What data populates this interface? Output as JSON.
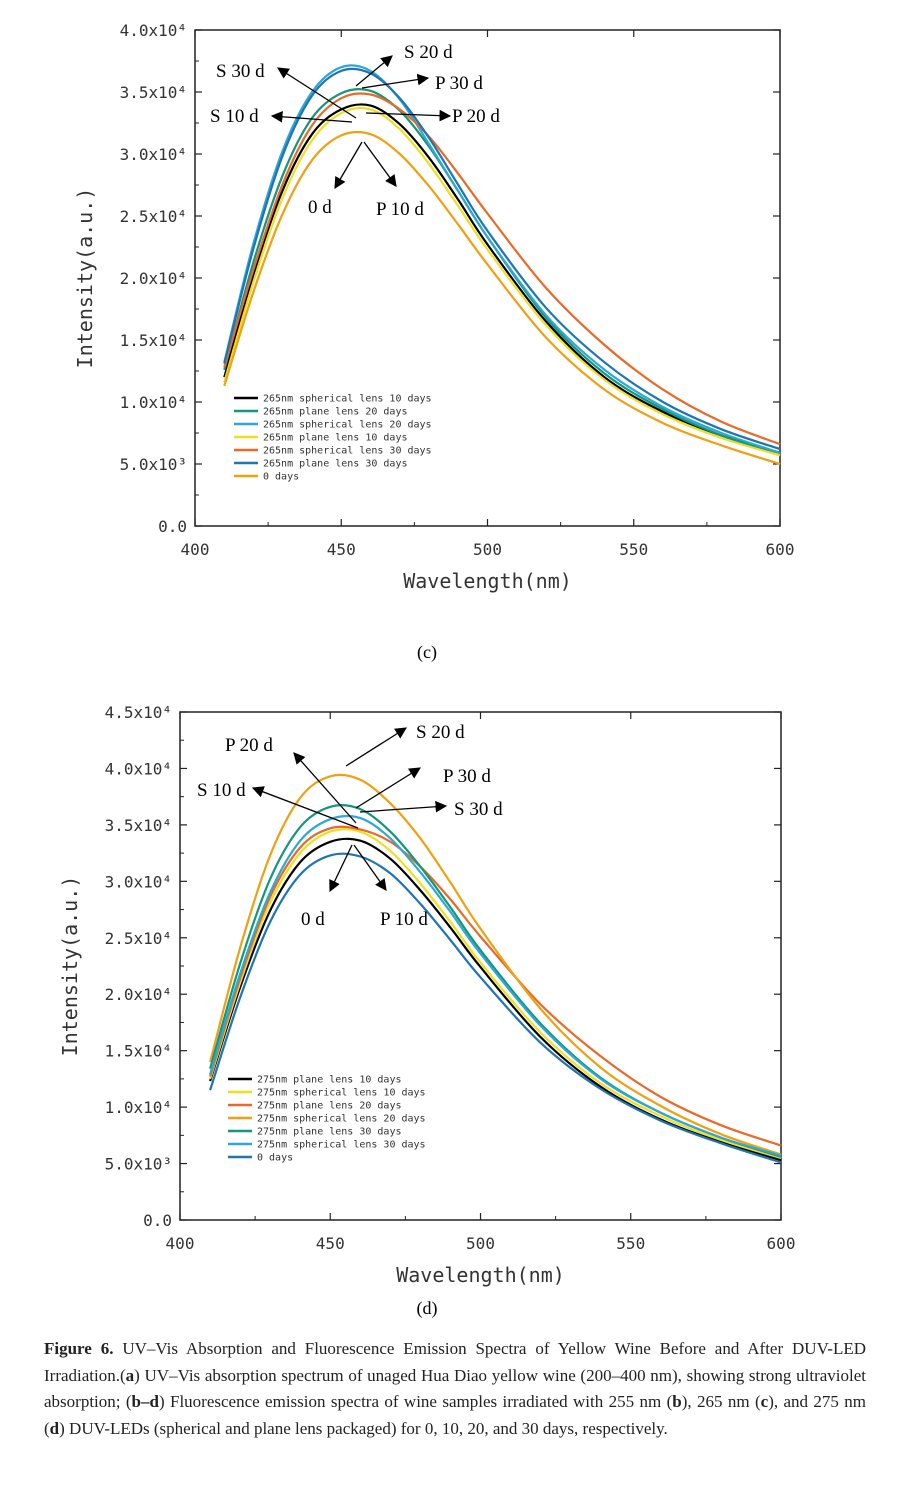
{
  "chart_data": [
    {
      "type": "line",
      "panel": "(c)",
      "xlabel": "Wavelength(nm)",
      "ylabel": "Intensity(a.u.)",
      "xlim": [
        400,
        600
      ],
      "ylim": [
        0,
        40000
      ],
      "xticks": [
        400,
        450,
        500,
        550,
        600
      ],
      "yticks": [
        0,
        5000,
        10000,
        15000,
        20000,
        25000,
        30000,
        35000,
        40000
      ],
      "ytick_labels": [
        "0.0",
        "5.0x10³",
        "1.0x10⁴",
        "1.5x10⁴",
        "2.0x10⁴",
        "2.5x10⁴",
        "3.0x10⁴",
        "3.5x10⁴",
        "4.0x10⁴"
      ],
      "legend_position": "bottom-left",
      "series": [
        {
          "name": "265nm spherical lens 10 days",
          "color": "#000000",
          "points": [
            [
              410,
              12000
            ],
            [
              420,
              20300
            ],
            [
              430,
              27100
            ],
            [
              440,
              31600
            ],
            [
              450,
              33600
            ],
            [
              460,
              33900
            ],
            [
              470,
              32400
            ],
            [
              480,
              29700
            ],
            [
              490,
              26300
            ],
            [
              500,
              22700
            ],
            [
              520,
              16500
            ],
            [
              540,
              12000
            ],
            [
              560,
              9200
            ],
            [
              580,
              7300
            ],
            [
              600,
              5900
            ]
          ]
        },
        {
          "name": "265nm plane lens 20 days",
          "color": "#14967a",
          "points": [
            [
              410,
              12600
            ],
            [
              420,
              21300
            ],
            [
              430,
              28300
            ],
            [
              440,
              32900
            ],
            [
              450,
              34900
            ],
            [
              460,
              35100
            ],
            [
              470,
              33500
            ],
            [
              480,
              30600
            ],
            [
              490,
              27000
            ],
            [
              500,
              23300
            ],
            [
              520,
              16800
            ],
            [
              540,
              12300
            ],
            [
              560,
              9400
            ],
            [
              580,
              7300
            ],
            [
              600,
              5800
            ]
          ]
        },
        {
          "name": "265nm spherical lens 20 days",
          "color": "#2ba8d8",
          "points": [
            [
              410,
              13200
            ],
            [
              420,
              22800
            ],
            [
              430,
              30300
            ],
            [
              440,
              35000
            ],
            [
              450,
              37000
            ],
            [
              460,
              36700
            ],
            [
              470,
              34400
            ],
            [
              480,
              30800
            ],
            [
              490,
              27000
            ],
            [
              500,
              23300
            ],
            [
              520,
              17000
            ],
            [
              540,
              12600
            ],
            [
              560,
              9600
            ],
            [
              580,
              7500
            ],
            [
              600,
              5900
            ]
          ]
        },
        {
          "name": "265nm plane lens 10 days",
          "color": "#f0de20",
          "points": [
            [
              410,
              11600
            ],
            [
              420,
              19700
            ],
            [
              430,
              26500
            ],
            [
              440,
              31100
            ],
            [
              450,
              33300
            ],
            [
              460,
              33600
            ],
            [
              470,
              32000
            ],
            [
              480,
              29200
            ],
            [
              490,
              25800
            ],
            [
              500,
              22300
            ],
            [
              520,
              16200
            ],
            [
              540,
              11800
            ],
            [
              560,
              9000
            ],
            [
              580,
              7100
            ],
            [
              600,
              5700
            ]
          ]
        },
        {
          "name": "265nm spherical lens 30 days",
          "color": "#e96a28",
          "points": [
            [
              410,
              12800
            ],
            [
              420,
              20700
            ],
            [
              430,
              27600
            ],
            [
              440,
              32300
            ],
            [
              450,
              34500
            ],
            [
              460,
              34800
            ],
            [
              470,
              33600
            ],
            [
              480,
              31400
            ],
            [
              490,
              28400
            ],
            [
              500,
              25200
            ],
            [
              520,
              19200
            ],
            [
              540,
              14600
            ],
            [
              560,
              11000
            ],
            [
              580,
              8400
            ],
            [
              600,
              6600
            ]
          ]
        },
        {
          "name": "265nm plane lens 30 days",
          "color": "#1f74b4",
          "points": [
            [
              410,
              13100
            ],
            [
              420,
              22400
            ],
            [
              430,
              29900
            ],
            [
              440,
              34700
            ],
            [
              450,
              36700
            ],
            [
              460,
              36500
            ],
            [
              470,
              34500
            ],
            [
              480,
              31300
            ],
            [
              490,
              27500
            ],
            [
              500,
              23800
            ],
            [
              520,
              17600
            ],
            [
              540,
              13200
            ],
            [
              560,
              10000
            ],
            [
              580,
              7800
            ],
            [
              600,
              6200
            ]
          ]
        },
        {
          "name": "0 days",
          "color": "#f0a010",
          "points": [
            [
              410,
              11300
            ],
            [
              420,
              18900
            ],
            [
              430,
              25200
            ],
            [
              440,
              29500
            ],
            [
              450,
              31500
            ],
            [
              460,
              31600
            ],
            [
              470,
              30000
            ],
            [
              480,
              27400
            ],
            [
              490,
              24300
            ],
            [
              500,
              21100
            ],
            [
              520,
              15200
            ],
            [
              540,
              11000
            ],
            [
              560,
              8300
            ],
            [
              580,
              6500
            ],
            [
              600,
              5000
            ]
          ]
        }
      ],
      "annotations": [
        "S 20 d",
        "S 30 d",
        "P 30 d",
        "S 10 d",
        "P 20 d",
        "0 d",
        "P 10 d"
      ],
      "panel_label": "c"
    },
    {
      "type": "line",
      "panel": "(d)",
      "xlabel": "Wavelength(nm)",
      "ylabel": "Intensity(a.u.)",
      "xlim": [
        400,
        600
      ],
      "ylim": [
        0,
        45000
      ],
      "xticks": [
        400,
        450,
        500,
        550,
        600
      ],
      "yticks": [
        0,
        5000,
        10000,
        15000,
        20000,
        25000,
        30000,
        35000,
        40000,
        45000
      ],
      "ytick_labels": [
        "0.0",
        "5.0x10³",
        "1.0x10⁴",
        "1.5x10⁴",
        "2.0x10⁴",
        "2.5x10⁴",
        "3.0x10⁴",
        "3.5x10⁴",
        "4.0x10⁴",
        "4.5x10⁴"
      ],
      "legend_position": "bottom-left",
      "series": [
        {
          "name": "275nm plane lens 10 days",
          "color": "#000000",
          "points": [
            [
              410,
              12300
            ],
            [
              420,
              20600
            ],
            [
              430,
              27400
            ],
            [
              440,
              31700
            ],
            [
              450,
              33500
            ],
            [
              460,
              33600
            ],
            [
              470,
              32000
            ],
            [
              480,
              29200
            ],
            [
              490,
              25900
            ],
            [
              500,
              22400
            ],
            [
              520,
              16200
            ],
            [
              540,
              11800
            ],
            [
              560,
              8900
            ],
            [
              580,
              6900
            ],
            [
              600,
              5300
            ]
          ]
        },
        {
          "name": "275nm spherical lens 10 days",
          "color": "#f0de20",
          "points": [
            [
              410,
              12500
            ],
            [
              420,
              21000
            ],
            [
              430,
              28100
            ],
            [
              440,
              32500
            ],
            [
              450,
              34400
            ],
            [
              460,
              34400
            ],
            [
              470,
              32700
            ],
            [
              480,
              29800
            ],
            [
              490,
              26400
            ],
            [
              500,
              22800
            ],
            [
              520,
              16600
            ],
            [
              540,
              12100
            ],
            [
              560,
              9200
            ],
            [
              580,
              7100
            ],
            [
              600,
              5500
            ]
          ]
        },
        {
          "name": "275nm plane lens 20 days",
          "color": "#e96a28",
          "points": [
            [
              410,
              12700
            ],
            [
              420,
              21400
            ],
            [
              430,
              28600
            ],
            [
              440,
              33000
            ],
            [
              450,
              34700
            ],
            [
              460,
              34600
            ],
            [
              470,
              33500
            ],
            [
              480,
              31300
            ],
            [
              490,
              28400
            ],
            [
              500,
              25100
            ],
            [
              520,
              19100
            ],
            [
              540,
              14500
            ],
            [
              560,
              10900
            ],
            [
              580,
              8400
            ],
            [
              600,
              6600
            ]
          ]
        },
        {
          "name": "275nm spherical lens 20 days",
          "color": "#f0a010",
          "points": [
            [
              410,
              14000
            ],
            [
              420,
              24100
            ],
            [
              430,
              32300
            ],
            [
              440,
              37400
            ],
            [
              450,
              39300
            ],
            [
              460,
              39000
            ],
            [
              470,
              36900
            ],
            [
              480,
              33800
            ],
            [
              490,
              29900
            ],
            [
              500,
              25800
            ],
            [
              520,
              18700
            ],
            [
              540,
              13500
            ],
            [
              560,
              10100
            ],
            [
              580,
              7600
            ],
            [
              600,
              5800
            ]
          ]
        },
        {
          "name": "275nm plane lens 30 days",
          "color": "#14967a",
          "points": [
            [
              410,
              13400
            ],
            [
              420,
              22700
            ],
            [
              430,
              30200
            ],
            [
              440,
              34800
            ],
            [
              450,
              36600
            ],
            [
              460,
              36400
            ],
            [
              470,
              34400
            ],
            [
              480,
              31300
            ],
            [
              490,
              27700
            ],
            [
              500,
              23900
            ],
            [
              520,
              17400
            ],
            [
              540,
              12600
            ],
            [
              560,
              9500
            ],
            [
              580,
              7300
            ],
            [
              600,
              5600
            ]
          ]
        },
        {
          "name": "275nm spherical lens 30 days",
          "color": "#2ba8d8",
          "points": [
            [
              410,
              12900
            ],
            [
              420,
              21800
            ],
            [
              430,
              29000
            ],
            [
              440,
              33600
            ],
            [
              450,
              35500
            ],
            [
              460,
              35600
            ],
            [
              470,
              33800
            ],
            [
              480,
              30800
            ],
            [
              490,
              27300
            ],
            [
              500,
              23600
            ],
            [
              520,
              17200
            ],
            [
              540,
              12500
            ],
            [
              560,
              9500
            ],
            [
              580,
              7300
            ],
            [
              600,
              5700
            ]
          ]
        },
        {
          "name": "0 days",
          "color": "#1f74b4",
          "points": [
            [
              410,
              11500
            ],
            [
              420,
              19700
            ],
            [
              430,
              26400
            ],
            [
              440,
              30600
            ],
            [
              450,
              32300
            ],
            [
              460,
              32200
            ],
            [
              470,
              30700
            ],
            [
              480,
              28000
            ],
            [
              490,
              24800
            ],
            [
              500,
              21500
            ],
            [
              520,
              15700
            ],
            [
              540,
              11600
            ],
            [
              560,
              8800
            ],
            [
              580,
              6800
            ],
            [
              600,
              5100
            ]
          ]
        }
      ],
      "annotations": [
        "S 20 d",
        "P 20 d",
        "P 30 d",
        "S 10 d",
        "S 30 d",
        "0 d",
        "P 10 d"
      ],
      "panel_label": "d"
    }
  ],
  "panel_labels": {
    "c": "(c)",
    "d": "(d)"
  },
  "caption": {
    "figure_label": "Figure 6.",
    "text_1": " UV–Vis Absorption and Fluorescence Emission Spectra of Yellow Wine Before and After DUV-LED Irradiation.(",
    "bold_a": "a",
    "text_2": ") UV–Vis absorption spectrum of unaged Hua Diao yellow wine (200–400 nm), showing strong ultraviolet absorption; (",
    "bold_bd": "b–d",
    "text_3": ") Fluorescence emission spectra of wine samples irradiated with 255 nm (",
    "bold_b": "b",
    "text_4": "), 265 nm (",
    "bold_c": "c",
    "text_5": "), and 275 nm (",
    "bold_d": "d",
    "text_6": ") DUV-LEDs (spherical and plane lens packaged) for 0, 10, 20, and 30 days, respectively."
  }
}
